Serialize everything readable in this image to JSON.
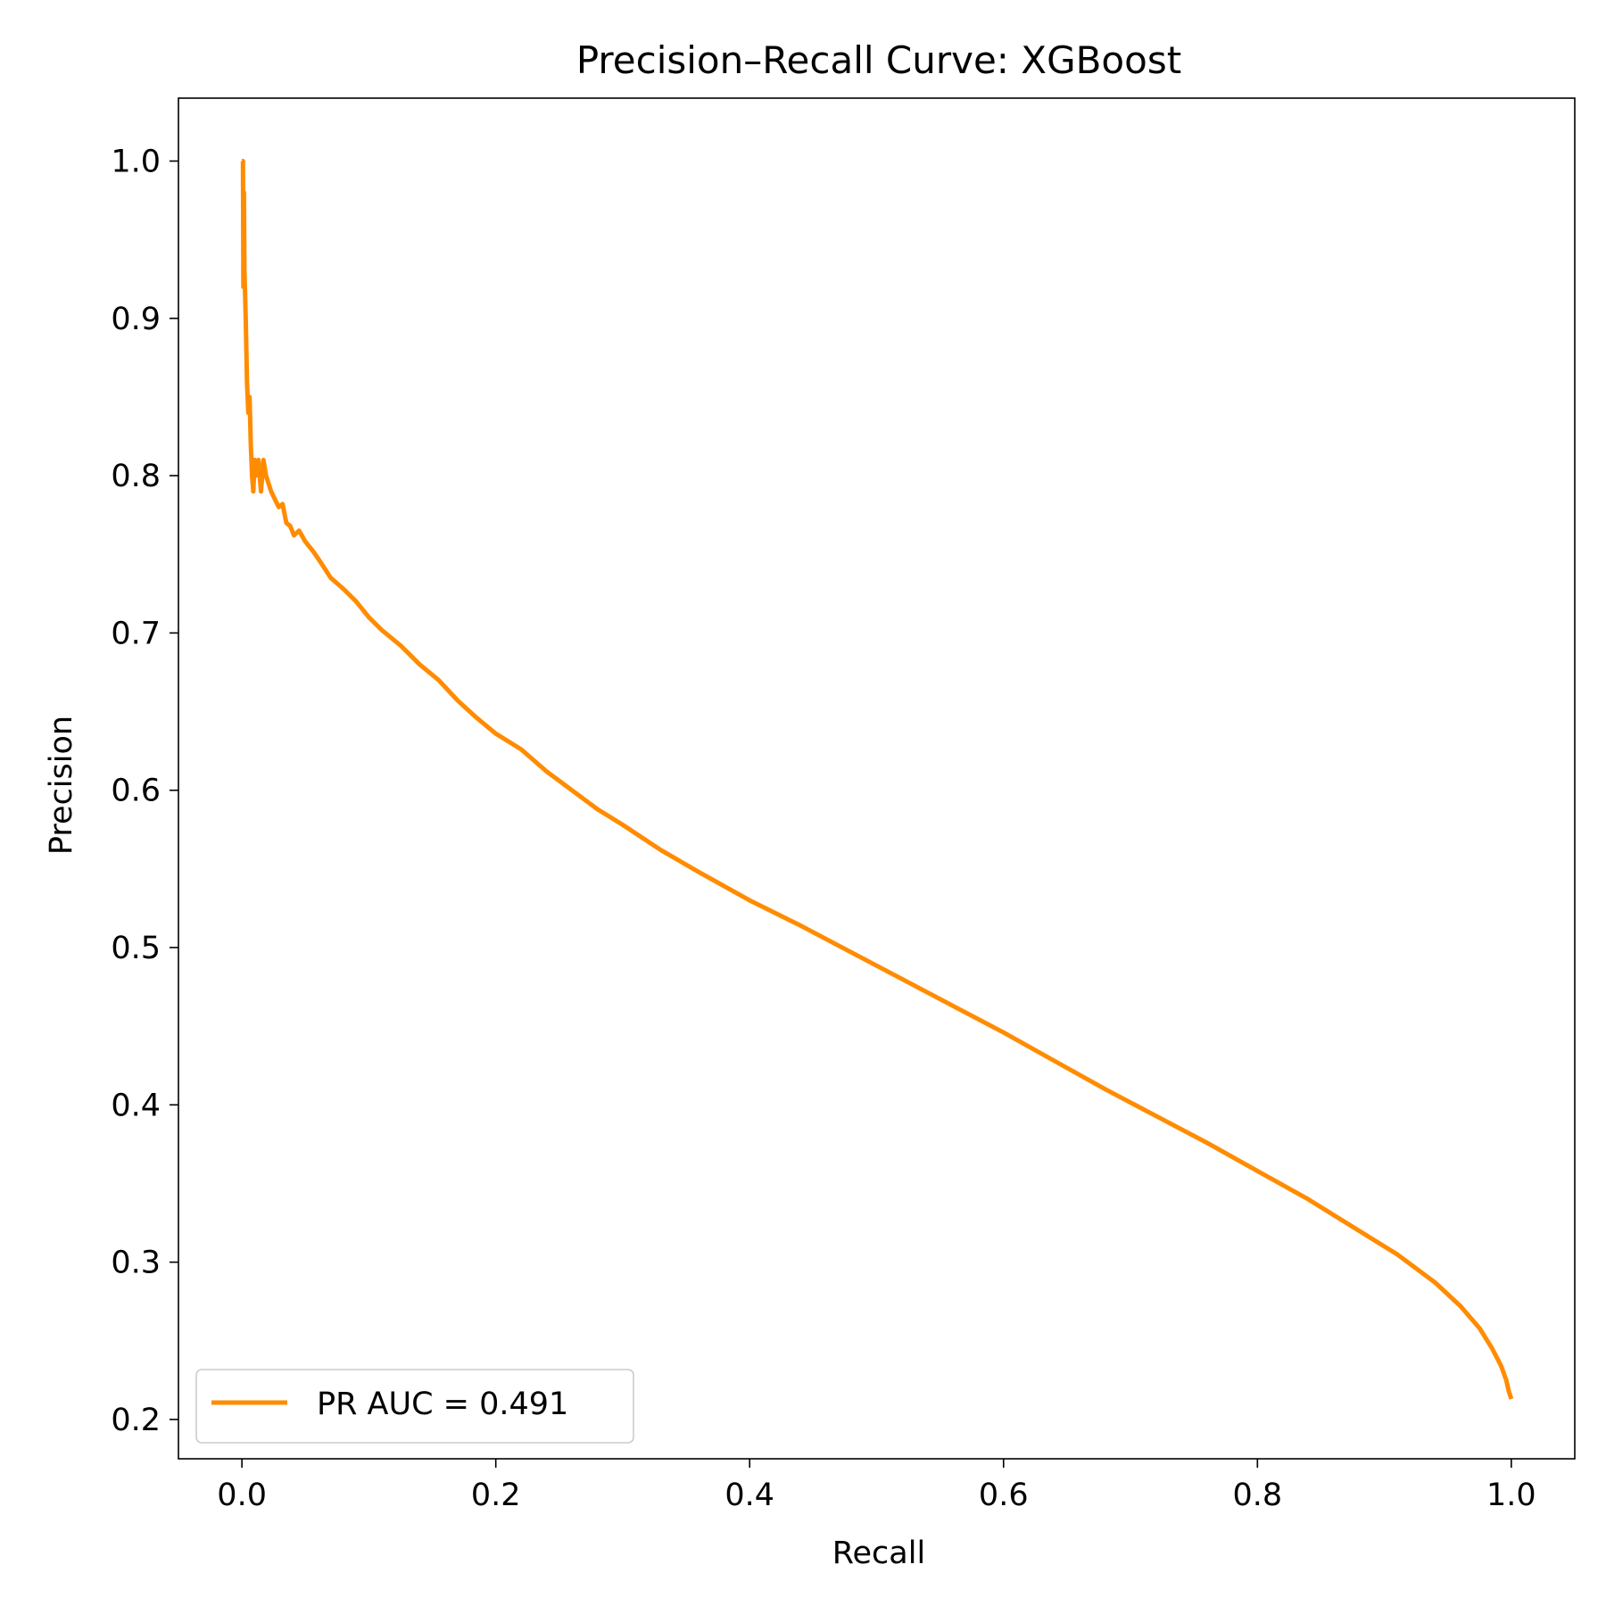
{
  "chart_data": {
    "type": "line",
    "title": "Precision–Recall Curve: XGBoost",
    "xlabel": "Recall",
    "ylabel": "Precision",
    "xlim": [
      -0.05,
      1.05
    ],
    "ylim": [
      0.175,
      1.04
    ],
    "xticks": [
      0.0,
      0.2,
      0.4,
      0.6,
      0.8,
      1.0
    ],
    "xtick_labels": [
      "0.0",
      "0.2",
      "0.4",
      "0.6",
      "0.8",
      "1.0"
    ],
    "yticks": [
      0.2,
      0.3,
      0.4,
      0.5,
      0.6,
      0.7,
      0.8,
      0.9,
      1.0
    ],
    "ytick_labels": [
      "0.2",
      "0.3",
      "0.4",
      "0.5",
      "0.6",
      "0.7",
      "0.8",
      "0.9",
      "1.0"
    ],
    "grid": false,
    "legend": {
      "position": "lower-left"
    },
    "series": [
      {
        "name": "PR AUC = 0.491",
        "color": "#ff8c00",
        "x": [
          0.0,
          0.0008,
          0.0012,
          0.0016,
          0.002,
          0.003,
          0.004,
          0.005,
          0.006,
          0.007,
          0.008,
          0.009,
          0.01,
          0.011,
          0.013,
          0.015,
          0.017,
          0.019,
          0.021,
          0.023,
          0.026,
          0.029,
          0.032,
          0.035,
          0.038,
          0.041,
          0.045,
          0.05,
          0.056,
          0.062,
          0.07,
          0.08,
          0.09,
          0.1,
          0.11,
          0.125,
          0.14,
          0.155,
          0.17,
          0.185,
          0.2,
          0.22,
          0.24,
          0.26,
          0.28,
          0.3,
          0.33,
          0.36,
          0.4,
          0.44,
          0.48,
          0.52,
          0.56,
          0.6,
          0.64,
          0.68,
          0.72,
          0.76,
          0.8,
          0.84,
          0.88,
          0.91,
          0.94,
          0.96,
          0.975,
          0.985,
          0.992,
          0.996,
          0.998,
          1.0
        ],
        "y": [
          1.0,
          1.0,
          0.92,
          0.98,
          0.93,
          0.9,
          0.86,
          0.84,
          0.85,
          0.82,
          0.8,
          0.79,
          0.81,
          0.8,
          0.81,
          0.79,
          0.81,
          0.8,
          0.795,
          0.79,
          0.785,
          0.78,
          0.782,
          0.77,
          0.768,
          0.762,
          0.765,
          0.758,
          0.752,
          0.745,
          0.735,
          0.728,
          0.72,
          0.71,
          0.702,
          0.692,
          0.68,
          0.67,
          0.657,
          0.646,
          0.636,
          0.626,
          0.612,
          0.6,
          0.588,
          0.578,
          0.562,
          0.548,
          0.53,
          0.514,
          0.497,
          0.48,
          0.463,
          0.446,
          0.428,
          0.41,
          0.393,
          0.376,
          0.358,
          0.34,
          0.32,
          0.305,
          0.287,
          0.272,
          0.258,
          0.245,
          0.234,
          0.225,
          0.218,
          0.213
        ]
      }
    ]
  }
}
